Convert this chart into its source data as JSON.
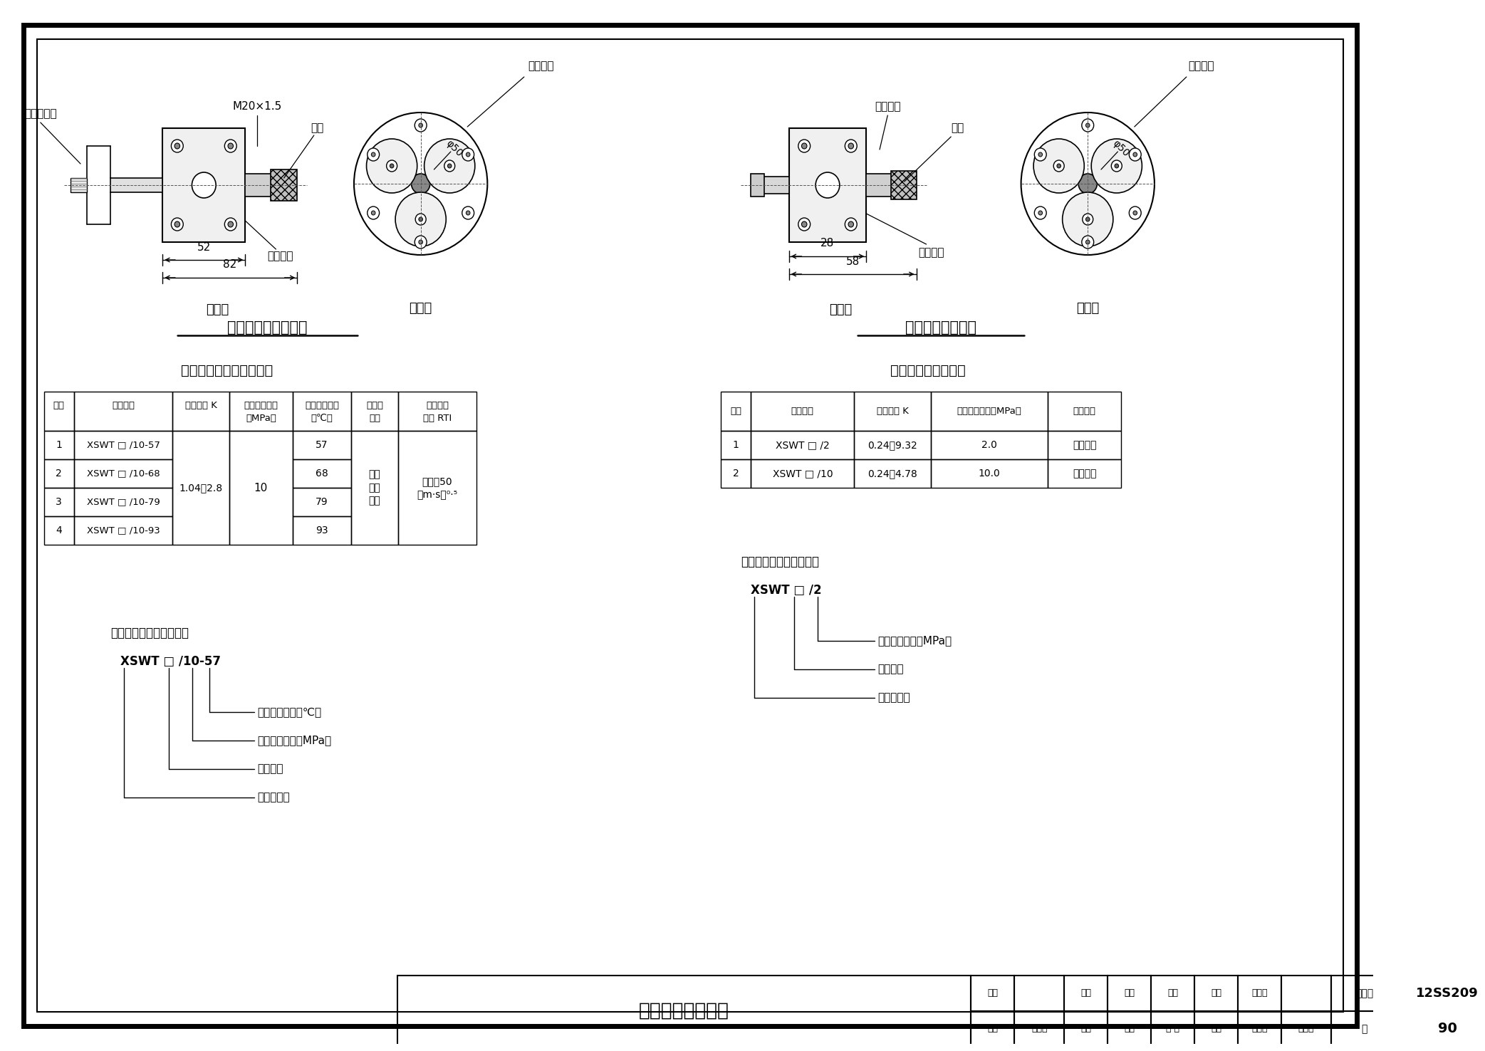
{
  "title": "细水雾喷头外形图",
  "figure_number": "12SS209",
  "page": "90",
  "bg_color": "#ffffff",
  "left_drawing_title": "高压闭式喷头外形图",
  "right_drawing_title": "开式式喷头外形图",
  "left_table_title": "高压闭式喷头技术参数表",
  "left_table_headers_row1": [
    "序号",
    "喷头型号",
    "流量系数 K",
    "最低工作压力",
    "公称动作温度",
    "灵敏度",
    "响应时间"
  ],
  "left_table_headers_row2": [
    "",
    "",
    "",
    "（MPa）",
    "（℃）",
    "类别",
    "指数 RTI"
  ],
  "left_temps": [
    "57",
    "68",
    "79",
    "93"
  ],
  "left_models": [
    "XSWT □ /10-57",
    "XSWT □ /10-68",
    "XSWT □ /10-79",
    "XSWT □ /10-93"
  ],
  "left_k": "1.04～2.8",
  "left_mpa": "10",
  "left_sensitivity": "快速\n响应\n喷头",
  "left_rti": "不大于50\n（m·s）⁰·⁵",
  "right_table_title": "开式喷头技术参数表",
  "right_table_headers": [
    "序号",
    "喷头型号",
    "流量系数 K",
    "最低工作压力（MPa）",
    "适用系统"
  ],
  "right_table_rows": [
    [
      "1",
      "XSWT □ /2",
      "0.24～9.32",
      "2.0",
      "中压系统"
    ],
    [
      "2",
      "XSWT □ /10",
      "0.24～4.78",
      "10.0",
      "高压系统"
    ]
  ],
  "left_example_title": "闭式喷头型号意义示例：",
  "left_example_model": "XSWT □ /10-57",
  "left_example_anns": [
    "公称动作温度（℃）",
    "最低工作压力（MPa）",
    "流量系数",
    "细水雾喷头"
  ],
  "right_example_title": "开式喷头型号意义示例：",
  "right_example_model": "XSWT □ /2",
  "right_example_anns": [
    "最低工作压力（MPa）",
    "流量系数",
    "细水雾喷头"
  ],
  "label_front": "前视图",
  "label_side": "侧视图",
  "label_micro": "微型喷嘴",
  "label_body": "喷头本体",
  "label_bulb": "感温玻璃泡",
  "label_thread": "M20×1.5",
  "label_filter": "滤网",
  "label_connector": "接口螺纹",
  "dim_52": "52",
  "dim_82": "82",
  "dim_28": "28",
  "dim_58": "58",
  "phi50": "φ50",
  "footer_review": "审核",
  "footer_reviewer": "姚敦刚",
  "footer_check": "校对",
  "footer_checker": "韩建",
  "footer_design": "设计",
  "footer_designer": "郭才智",
  "footer_page_label": "页",
  "footer_atlas_label": "图集号"
}
